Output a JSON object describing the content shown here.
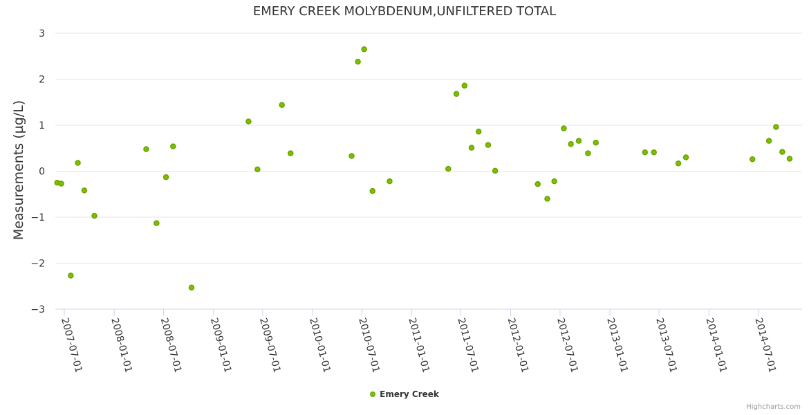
{
  "colors": {
    "series": "#6aa200",
    "series_fill": "#7cc000",
    "grid": "#e6e6e6",
    "axis": "#ccd6eb",
    "text": "#333333",
    "credits": "#999999"
  },
  "credits": "Highcharts.com",
  "chart_data": {
    "type": "scatter",
    "title": "EMERY CREEK MOLYBDENUM,UNFILTERED TOTAL",
    "ylabel": "Measurements (µg/L)",
    "xlabel": "",
    "ylim": [
      -3,
      3
    ],
    "xlim": [
      "2007-05-29",
      "2014-12-10"
    ],
    "yticks": [
      3,
      2,
      1,
      0,
      -1,
      -2,
      -3
    ],
    "xticks": [
      "2007-07-01",
      "2008-01-01",
      "2008-07-01",
      "2009-01-01",
      "2009-07-01",
      "2010-01-01",
      "2010-07-01",
      "2011-01-01",
      "2011-07-01",
      "2012-01-01",
      "2012-07-01",
      "2013-01-01",
      "2013-07-01",
      "2014-01-01",
      "2014-07-01"
    ],
    "grid": true,
    "legend_position": "bottom-center",
    "series": [
      {
        "name": "Emery Creek",
        "points": [
          {
            "x": "2007-06-05",
            "y": -0.25
          },
          {
            "x": "2007-06-20",
            "y": -0.27
          },
          {
            "x": "2007-07-25",
            "y": -2.27
          },
          {
            "x": "2007-08-20",
            "y": 0.18
          },
          {
            "x": "2007-09-13",
            "y": -0.42
          },
          {
            "x": "2007-10-20",
            "y": -0.97
          },
          {
            "x": "2008-04-28",
            "y": 0.48
          },
          {
            "x": "2008-06-05",
            "y": -1.13
          },
          {
            "x": "2008-07-10",
            "y": -0.13
          },
          {
            "x": "2008-08-05",
            "y": 0.54
          },
          {
            "x": "2008-10-12",
            "y": -2.53
          },
          {
            "x": "2009-05-10",
            "y": 1.08
          },
          {
            "x": "2009-06-12",
            "y": 0.04
          },
          {
            "x": "2009-09-10",
            "y": 1.44
          },
          {
            "x": "2009-10-12",
            "y": 0.39
          },
          {
            "x": "2010-05-25",
            "y": 0.33
          },
          {
            "x": "2010-06-17",
            "y": 2.38
          },
          {
            "x": "2010-07-10",
            "y": 2.65
          },
          {
            "x": "2010-08-10",
            "y": -0.43
          },
          {
            "x": "2010-10-12",
            "y": -0.22
          },
          {
            "x": "2011-05-16",
            "y": 0.05
          },
          {
            "x": "2011-06-15",
            "y": 1.68
          },
          {
            "x": "2011-07-15",
            "y": 1.86
          },
          {
            "x": "2011-08-10",
            "y": 0.51
          },
          {
            "x": "2011-09-05",
            "y": 0.86
          },
          {
            "x": "2011-10-10",
            "y": 0.57
          },
          {
            "x": "2011-11-05",
            "y": 0.01
          },
          {
            "x": "2012-04-10",
            "y": -0.28
          },
          {
            "x": "2012-05-15",
            "y": -0.6
          },
          {
            "x": "2012-06-10",
            "y": -0.22
          },
          {
            "x": "2012-07-15",
            "y": 0.93
          },
          {
            "x": "2012-08-10",
            "y": 0.59
          },
          {
            "x": "2012-09-08",
            "y": 0.66
          },
          {
            "x": "2012-10-12",
            "y": 0.39
          },
          {
            "x": "2012-11-10",
            "y": 0.62
          },
          {
            "x": "2013-05-10",
            "y": 0.41
          },
          {
            "x": "2013-06-12",
            "y": 0.41
          },
          {
            "x": "2013-09-10",
            "y": 0.17
          },
          {
            "x": "2013-10-08",
            "y": 0.3
          },
          {
            "x": "2014-06-10",
            "y": 0.26
          },
          {
            "x": "2014-08-10",
            "y": 0.66
          },
          {
            "x": "2014-09-05",
            "y": 0.96
          },
          {
            "x": "2014-09-28",
            "y": 0.42
          },
          {
            "x": "2014-10-25",
            "y": 0.27
          }
        ]
      }
    ]
  }
}
